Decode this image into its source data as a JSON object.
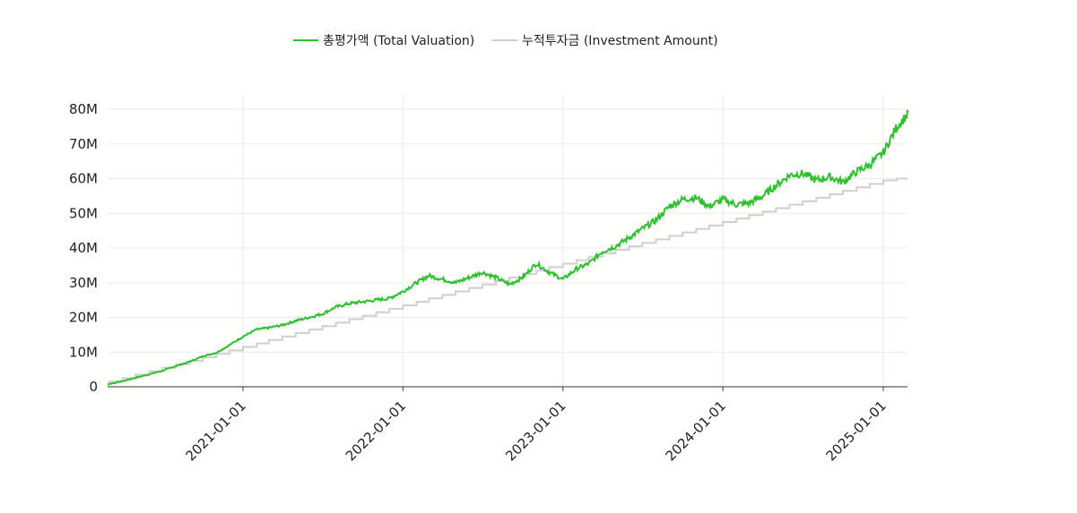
{
  "chart_data": {
    "type": "line",
    "legend_position": "top-center",
    "grid": true,
    "y_tick_labels": [
      "0",
      "10M",
      "20M",
      "30M",
      "40M",
      "50M",
      "60M",
      "70M",
      "80M"
    ],
    "y_ticks": [
      0,
      10000000,
      20000000,
      30000000,
      40000000,
      50000000,
      60000000,
      70000000,
      80000000
    ],
    "ylim": [
      0,
      80000000
    ],
    "x_tick_labels": [
      "2021-01-01",
      "2022-01-01",
      "2023-01-01",
      "2024-01-01",
      "2025-01-01"
    ],
    "xlim": [
      "2020-02-01",
      "2025-03-01"
    ],
    "series": [
      {
        "name": "총평가액 (Total Valuation)",
        "color": "#2ec02e",
        "points": [
          [
            "2020-02-01",
            0.2
          ],
          [
            "2020-03-01",
            0.8
          ],
          [
            "2020-04-01",
            1.6
          ],
          [
            "2020-05-01",
            2.6
          ],
          [
            "2020-06-01",
            3.6
          ],
          [
            "2020-07-01",
            4.6
          ],
          [
            "2020-08-01",
            6.0
          ],
          [
            "2020-09-01",
            7.2
          ],
          [
            "2020-10-01",
            8.8
          ],
          [
            "2020-11-01",
            9.8
          ],
          [
            "2020-12-01",
            12.0
          ],
          [
            "2021-01-01",
            14.5
          ],
          [
            "2021-02-01",
            16.5
          ],
          [
            "2021-03-01",
            17.0
          ],
          [
            "2021-04-01",
            17.8
          ],
          [
            "2021-05-01",
            19.0
          ],
          [
            "2021-06-01",
            20.0
          ],
          [
            "2021-07-01",
            21.0
          ],
          [
            "2021-08-01",
            23.0
          ],
          [
            "2021-09-01",
            24.0
          ],
          [
            "2021-10-01",
            24.5
          ],
          [
            "2021-11-01",
            25.0
          ],
          [
            "2021-12-01",
            25.5
          ],
          [
            "2022-01-01",
            27.5
          ],
          [
            "2022-02-01",
            30.0
          ],
          [
            "2022-03-01",
            32.0
          ],
          [
            "2022-04-01",
            31.0
          ],
          [
            "2022-05-01",
            30.0
          ],
          [
            "2022-06-01",
            31.5
          ],
          [
            "2022-07-01",
            33.0
          ],
          [
            "2022-08-01",
            31.5
          ],
          [
            "2022-09-01",
            29.5
          ],
          [
            "2022-10-01",
            31.5
          ],
          [
            "2022-11-01",
            35.5
          ],
          [
            "2022-12-01",
            33.0
          ],
          [
            "2023-01-01",
            31.0
          ],
          [
            "2023-02-01",
            34.0
          ],
          [
            "2023-03-01",
            35.5
          ],
          [
            "2023-04-01",
            39.0
          ],
          [
            "2023-05-01",
            40.5
          ],
          [
            "2023-06-01",
            43.0
          ],
          [
            "2023-07-01",
            45.5
          ],
          [
            "2023-08-01",
            48.0
          ],
          [
            "2023-09-01",
            52.0
          ],
          [
            "2023-10-01",
            54.0
          ],
          [
            "2023-11-01",
            54.5
          ],
          [
            "2023-12-01",
            52.0
          ],
          [
            "2024-01-01",
            54.0
          ],
          [
            "2024-02-01",
            52.5
          ],
          [
            "2024-03-01",
            53.0
          ],
          [
            "2024-04-01",
            55.0
          ],
          [
            "2024-05-01",
            58.0
          ],
          [
            "2024-06-01",
            61.0
          ],
          [
            "2024-07-01",
            61.5
          ],
          [
            "2024-08-01",
            59.5
          ],
          [
            "2024-09-01",
            60.5
          ],
          [
            "2024-10-01",
            59.0
          ],
          [
            "2024-11-01",
            62.0
          ],
          [
            "2024-12-01",
            64.0
          ],
          [
            "2025-01-01",
            67.5
          ],
          [
            "2025-02-01",
            75.0
          ],
          [
            "2025-03-01",
            79.0
          ]
        ]
      },
      {
        "name": "누적투자금 (Investment Amount)",
        "color": "#cfcfcf",
        "monthly_values": [
          0.5,
          1.5,
          2.5,
          3.5,
          4.5,
          5.5,
          6.5,
          7.5,
          8.5,
          9.5,
          10.5,
          11.5,
          12.5,
          13.5,
          14.5,
          15.5,
          16.5,
          17.5,
          18.5,
          19.5,
          20.5,
          21.5,
          22.5,
          23.5,
          24.5,
          25.5,
          26.5,
          27.5,
          28.5,
          29.5,
          30.5,
          31.5,
          32.5,
          33.5,
          34.5,
          35.5,
          36.5,
          37.5,
          38.5,
          39.5,
          40.5,
          41.5,
          42.5,
          43.5,
          44.5,
          45.5,
          46.5,
          47.5,
          48.5,
          49.5,
          50.5,
          51.5,
          52.5,
          53.5,
          54.5,
          55.5,
          56.5,
          57.5,
          58.5,
          59.5,
          60.0
        ],
        "start": "2020-02-01",
        "value_unit": "M"
      }
    ]
  }
}
